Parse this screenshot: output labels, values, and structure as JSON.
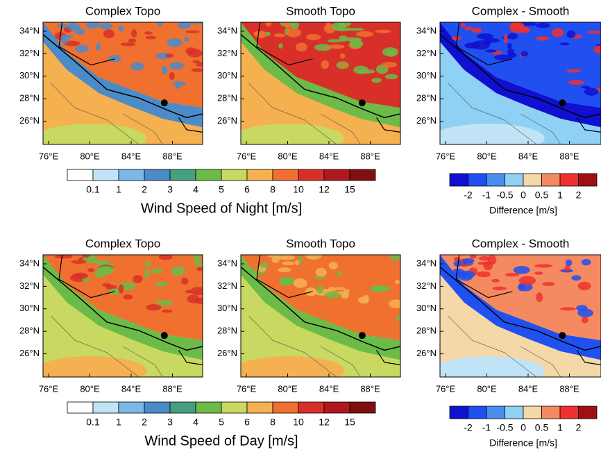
{
  "panels": [
    {
      "title": "Complex Topo",
      "lat_labels": [
        "34°N",
        "32°N",
        "30°N",
        "28°N",
        "26°N"
      ],
      "lon_labels": [
        "76°E",
        "80°E",
        "84°E",
        "88°E"
      ]
    },
    {
      "title": "Smooth Topo",
      "lat_labels": [
        "34°N",
        "32°N",
        "30°N",
        "28°N",
        "26°N"
      ],
      "lon_labels": [
        "76°E",
        "80°E",
        "84°E",
        "88°E"
      ]
    },
    {
      "title": "Complex - Smooth",
      "lat_labels": [
        "34°N",
        "32°N",
        "30°N",
        "28°N",
        "26°N"
      ],
      "lon_labels": [
        "76°E",
        "80°E",
        "84°E",
        "88°E"
      ]
    },
    {
      "title": "Complex Topo",
      "lat_labels": [
        "34°N",
        "32°N",
        "30°N",
        "28°N",
        "26°N"
      ],
      "lon_labels": [
        "76°E",
        "80°E",
        "84°E",
        "88°E"
      ]
    },
    {
      "title": "Smooth Topo",
      "lat_labels": [
        "34°N",
        "32°N",
        "30°N",
        "28°N",
        "26°N"
      ],
      "lon_labels": [
        "76°E",
        "80°E",
        "84°E",
        "88°E"
      ]
    },
    {
      "title": "Complex - Smooth",
      "lat_labels": [
        "34°N",
        "32°N",
        "30°N",
        "28°N",
        "26°N"
      ],
      "lon_labels": [
        "76°E",
        "80°E",
        "84°E",
        "88°E"
      ]
    }
  ],
  "colorbars": [
    {
      "title": "Wind Speed of Night [m/s]",
      "labels": [
        "0.1",
        "1",
        "2",
        "3",
        "4",
        "5",
        "6",
        "8",
        "10",
        "12",
        "15"
      ],
      "colors": [
        "#ffffff",
        "#c0e4f5",
        "#7bb7e8",
        "#4a8bc8",
        "#45a080",
        "#6cbb48",
        "#c8d860",
        "#f5b050",
        "#f07030",
        "#d83028",
        "#b01820",
        "#801010"
      ]
    },
    {
      "title": "Difference [m/s]",
      "labels": [
        "-2",
        "-1",
        "-0.5",
        "0",
        "0.5",
        "1",
        "2"
      ],
      "colors": [
        "#1010d0",
        "#2050f0",
        "#4a8ff0",
        "#8fd0f5",
        "#f5d8a8",
        "#f58a60",
        "#f03030",
        "#a01010"
      ]
    },
    {
      "title": "Wind Speed of Day [m/s]",
      "labels": [
        "0.1",
        "1",
        "2",
        "3",
        "4",
        "5",
        "6",
        "8",
        "10",
        "12",
        "15"
      ],
      "colors": [
        "#ffffff",
        "#c0e4f5",
        "#7bb7e8",
        "#4a8bc8",
        "#45a080",
        "#6cbb48",
        "#c8d860",
        "#f5b050",
        "#f07030",
        "#d83028",
        "#b01820",
        "#801010"
      ]
    },
    {
      "title": "Difference [m/s]",
      "labels": [
        "-2",
        "-1",
        "-0.5",
        "0",
        "0.5",
        "1",
        "2"
      ],
      "colors": [
        "#1010d0",
        "#2050f0",
        "#4a8ff0",
        "#8fd0f5",
        "#f5d8a8",
        "#f58a60",
        "#f03030",
        "#a01010"
      ]
    }
  ]
}
